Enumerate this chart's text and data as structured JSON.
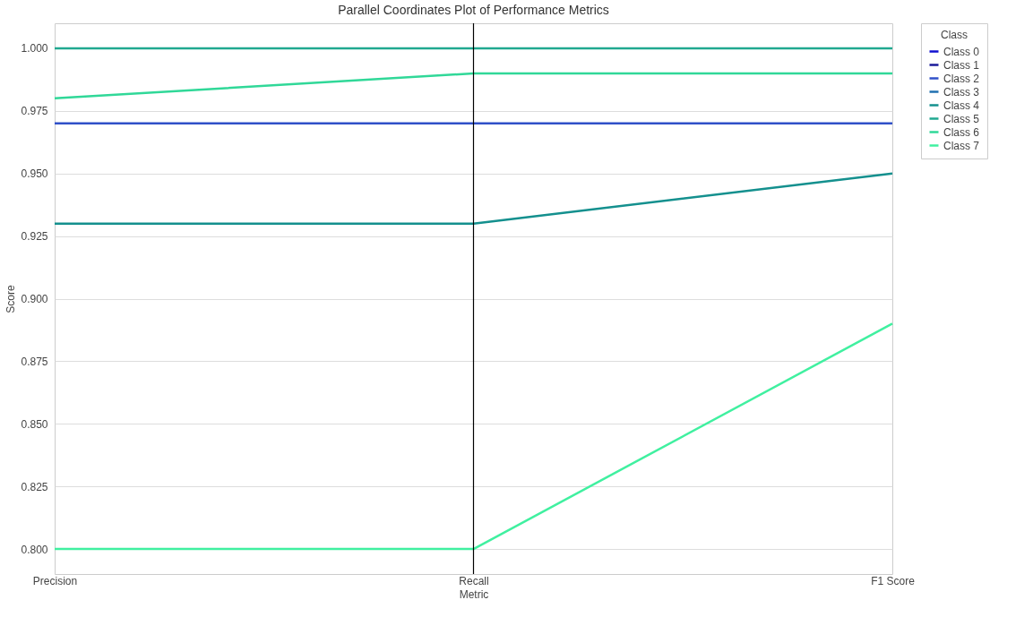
{
  "chart_data": {
    "type": "line",
    "title": "Parallel Coordinates Plot of Performance Metrics",
    "xlabel": "Metric",
    "ylabel": "Score",
    "legend_title": "Class",
    "categories": [
      "Precision",
      "Recall",
      "F1 Score"
    ],
    "series": [
      {
        "name": "Class 0",
        "color": "#1010d0",
        "values": [
          null,
          null,
          null
        ]
      },
      {
        "name": "Class 1",
        "color": "#1a1a9a",
        "values": [
          null,
          null,
          null
        ]
      },
      {
        "name": "Class 2",
        "color": "#3050c8",
        "values": [
          0.97,
          0.97,
          0.97
        ]
      },
      {
        "name": "Class 3",
        "color": "#2070b0",
        "values": [
          null,
          null,
          null
        ]
      },
      {
        "name": "Class 4",
        "color": "#14908e",
        "values": [
          0.93,
          0.93,
          0.95
        ]
      },
      {
        "name": "Class 5",
        "color": "#20a890",
        "values": [
          1.0,
          1.0,
          1.0
        ]
      },
      {
        "name": "Class 6",
        "color": "#30d898",
        "values": [
          0.98,
          0.99,
          0.99
        ]
      },
      {
        "name": "Class 7",
        "color": "#40f0a0",
        "values": [
          0.8,
          0.8,
          0.89
        ]
      }
    ],
    "ylim": [
      0.79,
      1.01
    ],
    "yticks": [
      {
        "value": 0.8,
        "label": "0.800"
      },
      {
        "value": 0.825,
        "label": "0.825"
      },
      {
        "value": 0.85,
        "label": "0.850"
      },
      {
        "value": 0.875,
        "label": "0.875"
      },
      {
        "value": 0.9,
        "label": "0.900"
      },
      {
        "value": 0.925,
        "label": "0.925"
      },
      {
        "value": 0.95,
        "label": "0.950"
      },
      {
        "value": 0.975,
        "label": "0.975"
      },
      {
        "value": 1.0,
        "label": "1.000"
      }
    ],
    "ref_lines": [
      {
        "axis": "x",
        "value": "Recall",
        "color": "#000000"
      }
    ],
    "grid": "y",
    "legend": "top right",
    "line_style": "solid"
  }
}
